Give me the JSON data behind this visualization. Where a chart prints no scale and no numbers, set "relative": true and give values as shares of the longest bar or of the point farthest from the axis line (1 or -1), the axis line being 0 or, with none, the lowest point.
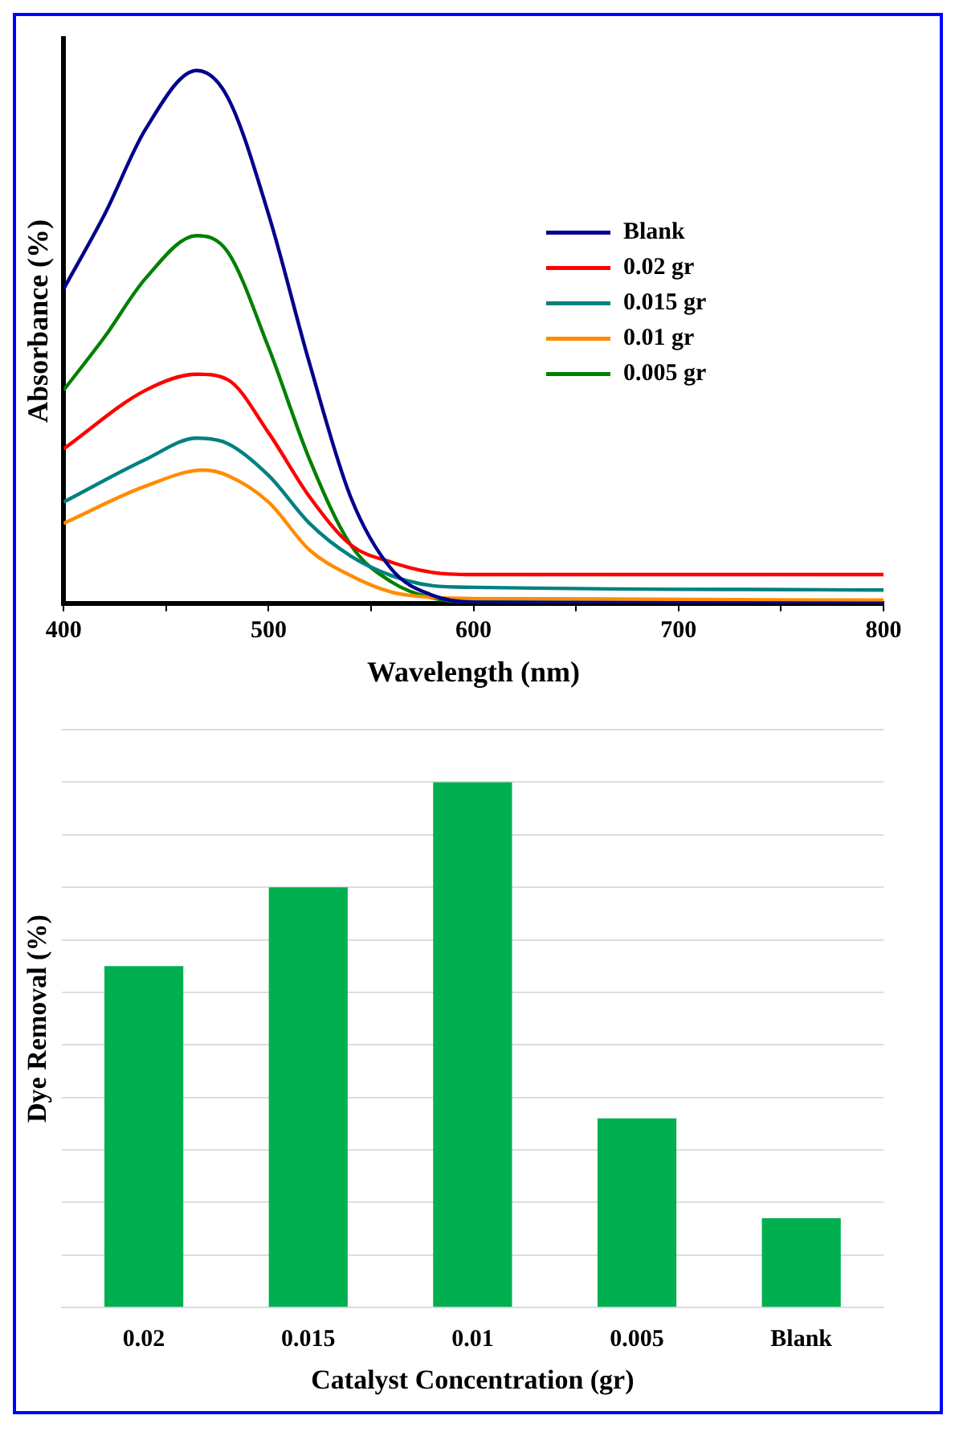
{
  "chart_data": [
    {
      "type": "line",
      "xlabel": "Wavelength (nm)",
      "ylabel": "Absorbance (%)",
      "relative": true,
      "legend": "right",
      "grid": false,
      "marker": "none",
      "line_style": "solid",
      "xlim": [
        400,
        800
      ],
      "xticks": [
        400,
        {
          "value": 450,
          "label": null
        },
        500,
        {
          "value": 550,
          "label": null
        },
        600,
        {
          "value": 650,
          "label": null
        },
        700,
        {
          "value": 750,
          "label": null
        },
        800
      ],
      "series": [
        {
          "name": "Blank",
          "color": "#00008b",
          "x": [
            400,
            420,
            440,
            465,
            480,
            500,
            520,
            540,
            560,
            580,
            600,
            800
          ],
          "values": [
            0.59,
            0.73,
            0.89,
            1.0,
            0.95,
            0.73,
            0.45,
            0.2,
            0.064,
            0.015,
            0.002,
            0
          ]
        },
        {
          "name": "0.02 gr",
          "color": "#ff0000",
          "x": [
            400,
            440,
            465,
            480,
            500,
            520,
            540,
            560,
            580,
            600,
            800
          ],
          "values": [
            0.29,
            0.4,
            0.43,
            0.42,
            0.32,
            0.2,
            0.11,
            0.077,
            0.058,
            0.054,
            0.054
          ]
        },
        {
          "name": "0.015 gr",
          "color": "#008080",
          "x": [
            400,
            440,
            465,
            480,
            500,
            520,
            540,
            560,
            580,
            600,
            800
          ],
          "values": [
            0.19,
            0.27,
            0.31,
            0.3,
            0.24,
            0.15,
            0.089,
            0.052,
            0.033,
            0.03,
            0.025
          ]
        },
        {
          "name": "0.01 gr",
          "color": "#ff8c00",
          "x": [
            400,
            440,
            468,
            480,
            500,
            520,
            540,
            560,
            580,
            600,
            800
          ],
          "values": [
            0.15,
            0.22,
            0.25,
            0.24,
            0.19,
            0.1,
            0.052,
            0.021,
            0.011,
            0.009,
            0.006
          ]
        },
        {
          "name": "0.005 gr",
          "color": "#008000",
          "x": [
            400,
            420,
            440,
            465,
            480,
            500,
            520,
            540,
            560,
            580,
            600,
            800
          ],
          "values": [
            0.4,
            0.5,
            0.61,
            0.69,
            0.66,
            0.48,
            0.27,
            0.11,
            0.04,
            0.01,
            0.002,
            0
          ]
        }
      ]
    },
    {
      "type": "bar",
      "xlabel": "Catalyst Concentration (gr)",
      "ylabel": "Dye Removal (%)",
      "relative": true,
      "grid": "y",
      "legend": false,
      "categories": [
        "0.02",
        "0.015",
        "0.01",
        "0.005",
        "Blank"
      ],
      "values": [
        0.65,
        0.8,
        1.0,
        0.36,
        0.17
      ],
      "color": "#00b050"
    }
  ]
}
